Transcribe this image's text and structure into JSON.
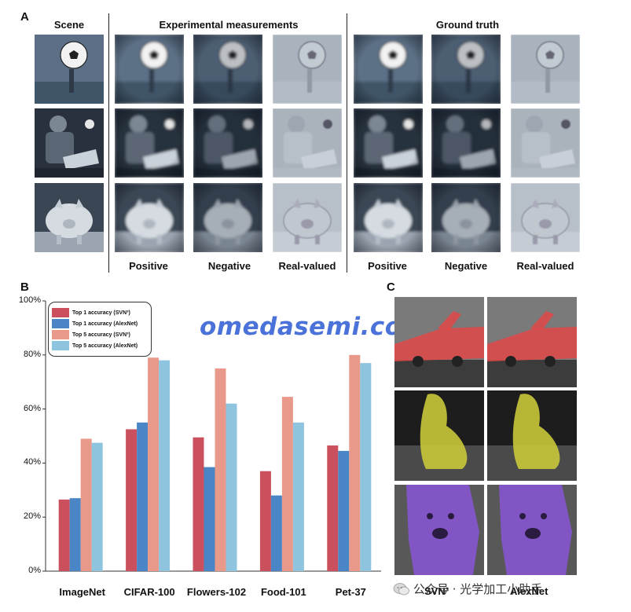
{
  "panel_a": {
    "letter": "A",
    "headers": {
      "scene": "Scene",
      "experimental": "Experimental measurements",
      "ground_truth": "Ground truth"
    },
    "bottom_labels": [
      "Positive",
      "Negative",
      "Real-valued",
      "Positive",
      "Negative",
      "Real-valued"
    ],
    "rows": [
      "soccer-ball-scene",
      "person-laptop-scene",
      "piggy-bank-scene"
    ]
  },
  "panel_b": {
    "letter": "B",
    "watermark": "omedasemi.com"
  },
  "panel_c": {
    "letter": "C",
    "labels": [
      "SVN³",
      "AlexNet"
    ],
    "mask_colors": [
      "#e24848",
      "#c9c83a",
      "#8a55d8"
    ]
  },
  "footer": {
    "text": "公众号 · 光学加工小助手"
  },
  "chart_data": {
    "type": "bar",
    "categories": [
      "ImageNet",
      "CIFAR-100",
      "Flowers-102",
      "Food-101",
      "Pet-37"
    ],
    "ylim": [
      0,
      100
    ],
    "yticks": [
      "0%",
      "20%",
      "40%",
      "60%",
      "80%",
      "100%"
    ],
    "xlabel": "",
    "ylabel": "",
    "legend_position": "top-left",
    "series": [
      {
        "name": "Top 1 accuracy (SVN³)",
        "color": "#c9505c",
        "values": [
          26.5,
          52.5,
          49.5,
          37,
          46.5
        ]
      },
      {
        "name": "Top 1 accuracy (AlexNet)",
        "color": "#4a86c6",
        "values": [
          27,
          55,
          38.5,
          28,
          44.5
        ]
      },
      {
        "name": "Top 5 accuracy (SVN³)",
        "color": "#e8998a",
        "values": [
          49,
          79,
          75,
          64.5,
          80
        ]
      },
      {
        "name": "Top 5 accuracy (AlexNet)",
        "color": "#8fc4de",
        "values": [
          47.5,
          78,
          62,
          55,
          77
        ]
      }
    ]
  }
}
